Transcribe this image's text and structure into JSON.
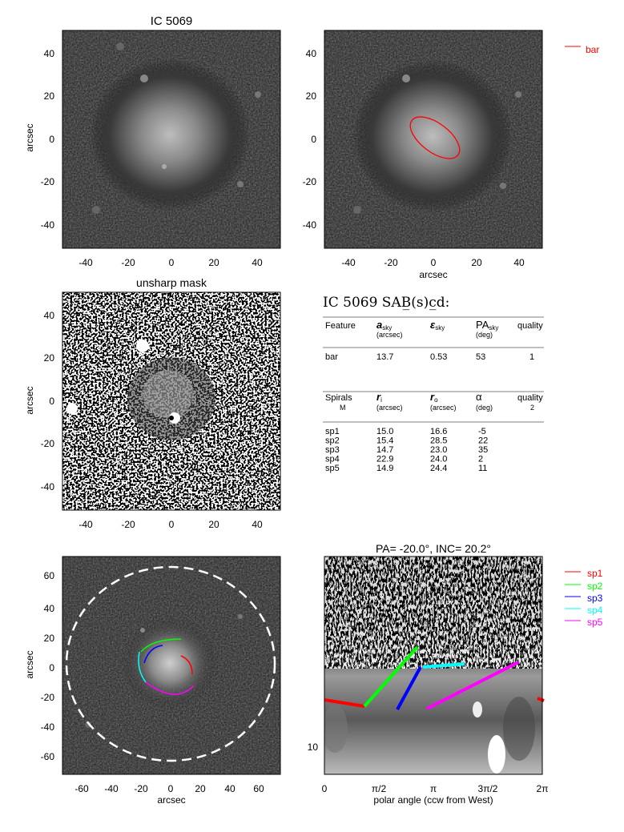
{
  "panels": {
    "top_left": {
      "title": "IC 5069",
      "ylabel": "arcsec",
      "xticks": [
        "-40",
        "-20",
        "0",
        "20",
        "40"
      ],
      "yticks": [
        "40",
        "20",
        "0",
        "-20",
        "-40"
      ]
    },
    "top_right": {
      "xlabel": "arcsec",
      "xticks": [
        "-40",
        "-20",
        "0",
        "20",
        "40"
      ],
      "yticks": [
        "40",
        "20",
        "0",
        "-20",
        "-40"
      ],
      "legend": [
        {
          "label": "bar",
          "color": "#ff0000"
        }
      ]
    },
    "mid_left": {
      "title": "unsharp mask",
      "ylabel": "arcsec",
      "xticks": [
        "-40",
        "-20",
        "0",
        "20",
        "40"
      ],
      "yticks": [
        "40",
        "20",
        "0",
        "-20",
        "-40"
      ]
    },
    "bottom_left": {
      "xlabel": "arcsec",
      "ylabel": "arcsec",
      "xticks": [
        "-60",
        "-40",
        "-20",
        "0",
        "20",
        "40",
        "60"
      ],
      "yticks": [
        "60",
        "40",
        "20",
        "0",
        "-20",
        "-40",
        "-60"
      ]
    },
    "bottom_right": {
      "title": "PA= -20.0°, INC=  20.2°",
      "xlabel": "polar angle (ccw from West)",
      "xticks": [
        "0",
        "π/2",
        "π",
        "3π/2",
        "2π"
      ],
      "yticks": [
        "10"
      ],
      "legend": [
        {
          "label": "sp1",
          "color": "#ff0000"
        },
        {
          "label": "sp2",
          "color": "#00ff00"
        },
        {
          "label": "sp3",
          "color": "#0000ff"
        },
        {
          "label": "sp4",
          "color": "#00ffff"
        },
        {
          "label": "sp5",
          "color": "#ff00ff"
        }
      ]
    }
  },
  "table": {
    "heading": "IC 5069  SAB̲(s)c̲d:",
    "bar_header": {
      "feature": "Feature",
      "a_main": "a",
      "a_sub": "sky",
      "a_unit": "(arcsec)",
      "e_main": "ε",
      "e_sub": "sky",
      "pa_main": "PA",
      "pa_sub": "sky",
      "pa_unit": "(deg)",
      "quality": "quality"
    },
    "bar_rows": [
      {
        "feature": "bar",
        "a": "13.7",
        "e": "0.53",
        "pa": "53",
        "quality": "1"
      }
    ],
    "spiral_header": {
      "feature": "Spirals",
      "m": "M",
      "ri_main": "r",
      "ri_sub": "i",
      "ri_unit": "(arcsec)",
      "ro_main": "r",
      "ro_sub": "o",
      "ro_unit": "(arcsec)",
      "alpha": "α",
      "alpha_unit": "(deg)",
      "quality": "quality",
      "quality_val": "2"
    },
    "spiral_rows": [
      {
        "name": "sp1",
        "ri": "15.0",
        "ro": "16.6",
        "alpha": "-5"
      },
      {
        "name": "sp2",
        "ri": "15.4",
        "ro": "28.5",
        "alpha": "22"
      },
      {
        "name": "sp3",
        "ri": "14.7",
        "ro": "23.0",
        "alpha": "35"
      },
      {
        "name": "sp4",
        "ri": "22.9",
        "ro": "24.0",
        "alpha": "2"
      },
      {
        "name": "sp5",
        "ri": "14.9",
        "ro": "24.4",
        "alpha": "11"
      }
    ]
  }
}
